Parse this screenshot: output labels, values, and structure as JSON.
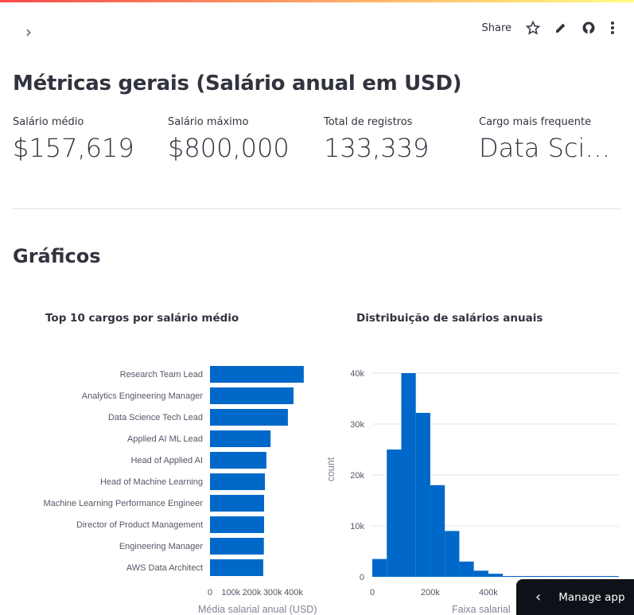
{
  "header": {
    "share_label": "Share",
    "icons": [
      "chevron-right-icon",
      "star-icon",
      "pencil-icon",
      "github-icon",
      "more-vertical-icon"
    ]
  },
  "title": "Métricas gerais (Salário anual em USD)",
  "metrics": [
    {
      "label": "Salário médio",
      "value": "$157,619"
    },
    {
      "label": "Salário máximo",
      "value": "$800,000"
    },
    {
      "label": "Total de registros",
      "value": "133,339"
    },
    {
      "label": "Cargo mais frequente",
      "value": "Data Scientist"
    }
  ],
  "section_title": "Gráficos",
  "manage_app": "Manage app",
  "colors": {
    "bar": "#0068c9"
  },
  "chart_data": [
    {
      "type": "bar",
      "orientation": "horizontal",
      "title": "Top 10 cargos por salário médio",
      "categories": [
        "Research Team Lead",
        "Analytics Engineering Manager",
        "Data Science Tech Lead",
        "Applied AI ML Lead",
        "Head of Applied AI",
        "Head of Machine Learning",
        "Machine Learning Performance Engineer",
        "Director of Product Management",
        "Engineering Manager",
        "AWS Data Architect"
      ],
      "values": [
        449000,
        400000,
        373000,
        290000,
        270000,
        263000,
        259000,
        259000,
        258000,
        255000
      ],
      "xlabel": "Média salarial anual (USD)",
      "ylabel": "",
      "xticks": [
        "0",
        "100k",
        "200k",
        "300k",
        "400k"
      ],
      "xlim": [
        0,
        450000
      ]
    },
    {
      "type": "bar",
      "subtype": "histogram",
      "title": "Distribuição de salários anuais",
      "bin_width": 50000,
      "x": [
        0,
        50000,
        100000,
        150000,
        200000,
        250000,
        300000,
        350000,
        400000,
        450000,
        500000,
        550000,
        600000,
        650000,
        700000,
        750000,
        800000
      ],
      "values": [
        3500,
        25000,
        40000,
        32200,
        18000,
        9000,
        3000,
        1200,
        600,
        100,
        100,
        100,
        100,
        100,
        100,
        100,
        100
      ],
      "xlabel": "Faixa salarial",
      "ylabel": "count",
      "xticks": [
        "0",
        "200k",
        "400k"
      ],
      "yticks": [
        "0",
        "10k",
        "20k",
        "30k",
        "40k"
      ],
      "xlim": [
        0,
        850000
      ],
      "ylim": [
        0,
        40000
      ],
      "grid": true
    }
  ]
}
